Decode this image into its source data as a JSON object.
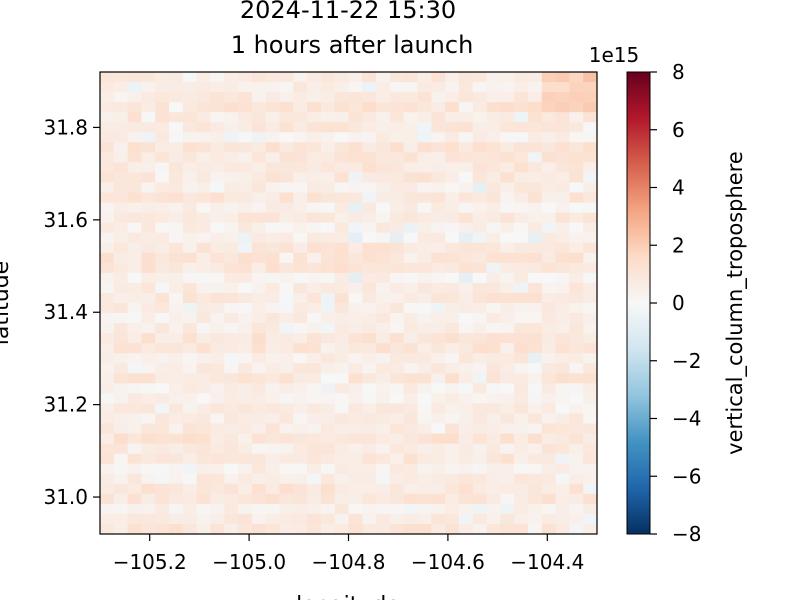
{
  "chart_data": {
    "type": "heatmap",
    "title_line1": "2024-11-22 15:30",
    "title_line2": "1 hours after launch",
    "xlabel": "longitude",
    "ylabel": "latitude",
    "xlim": [
      -105.3,
      -104.3
    ],
    "ylim": [
      30.92,
      31.92
    ],
    "xticks": [
      -105.2,
      -105.0,
      -104.8,
      -104.6,
      -104.4
    ],
    "xtick_labels": [
      "−105.2",
      "−105.0",
      "−104.8",
      "−104.6",
      "−104.4"
    ],
    "yticks": [
      31.0,
      31.2,
      31.4,
      31.6,
      31.8
    ],
    "ytick_labels": [
      "31.0",
      "31.2",
      "31.4",
      "31.6",
      "31.8"
    ],
    "colorbar": {
      "label": "vertical_column_troposphere",
      "offset_text": "1e15",
      "colormap": "RdBu_r",
      "vmin": -8,
      "vmax": 8,
      "ticks": [
        -8,
        -6,
        -4,
        -2,
        0,
        2,
        4,
        6,
        8
      ],
      "tick_labels": [
        "−8",
        "−6",
        "−4",
        "−2",
        "0",
        "2",
        "4",
        "6",
        "8"
      ],
      "colors": [
        "#053061",
        "#2166ac",
        "#4393c3",
        "#92c5de",
        "#d1e5f0",
        "#f7f7f7",
        "#fddbc7",
        "#f4a582",
        "#d6604d",
        "#b2182b",
        "#67001f"
      ]
    },
    "grid_cols": 36,
    "grid_rows": 46,
    "field_description_values": {
      "typical_value": 0.7,
      "min_value": -0.4,
      "max_value": 2.6
    }
  }
}
